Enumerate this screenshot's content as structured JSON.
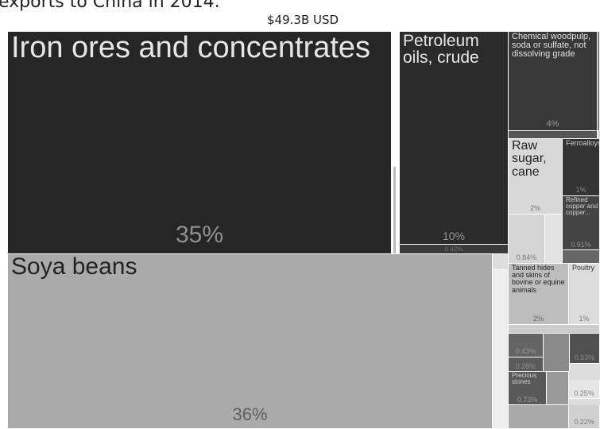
{
  "header": {
    "caption": "exports to China in 2014.",
    "total": "$49.3B USD"
  },
  "chart_data": {
    "type": "treemap",
    "total": "$49.3B USD",
    "items": [
      {
        "name": "Soya beans",
        "share": "36%",
        "value_pct": 36
      },
      {
        "name": "Iron ores and concentrates",
        "share": "35%",
        "value_pct": 35
      },
      {
        "name": "Petroleum oils, crude",
        "share": "10%",
        "value_pct": 10
      },
      {
        "name": "Chemical woodpulp, soda or sulfate, not dissolving grade",
        "share": "4%",
        "value_pct": 4
      },
      {
        "name": "Raw sugar, cane",
        "share": "2%",
        "value_pct": 2
      },
      {
        "name": "Tanned hides and skins of bovine or equine animals",
        "share": "2%",
        "value_pct": 2
      },
      {
        "name": "Ferroalloys",
        "share": "1%",
        "value_pct": 1
      },
      {
        "name": "Poultry",
        "share": "1%",
        "value_pct": 1
      },
      {
        "name": "Refined copper and copper...",
        "share": "0.91%",
        "value_pct": 0.91
      },
      {
        "name": "",
        "share": "0.84%",
        "value_pct": 0.84
      },
      {
        "name": "Precious stones",
        "share": "0.73%",
        "value_pct": 0.73
      },
      {
        "name": "",
        "share": "0.53%",
        "value_pct": 0.53
      },
      {
        "name": "",
        "share": "0.43%",
        "value_pct": 0.43
      },
      {
        "name": "",
        "share": "0.42%",
        "value_pct": 0.42
      },
      {
        "name": "",
        "share": "0.28%",
        "value_pct": 0.28
      },
      {
        "name": "",
        "share": "0.25%",
        "value_pct": 0.25
      },
      {
        "name": "",
        "share": "0.22%",
        "value_pct": 0.22
      }
    ]
  }
}
